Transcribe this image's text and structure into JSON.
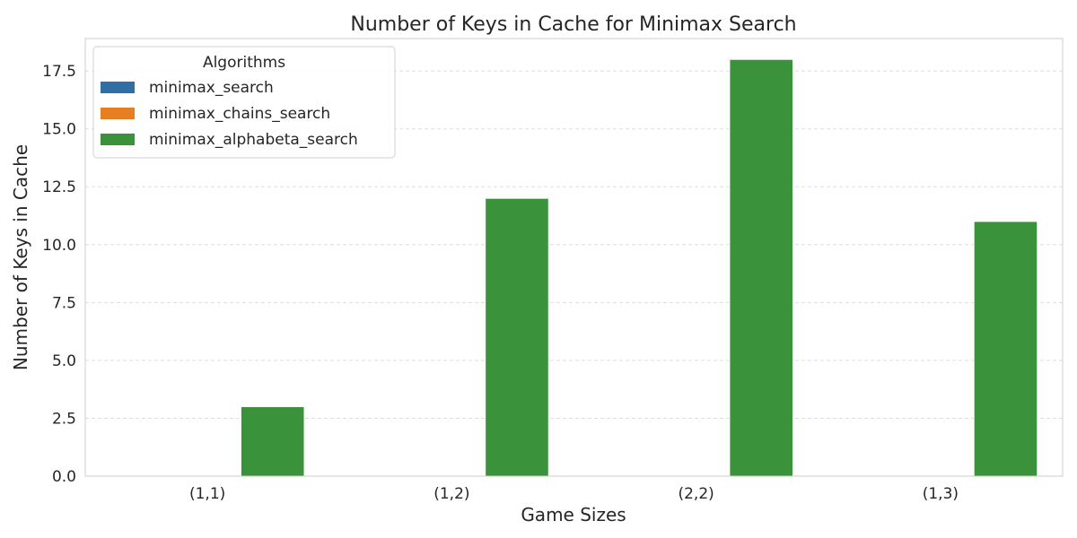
{
  "chart_data": {
    "type": "bar",
    "title": "Number of Keys in Cache for Minimax Search",
    "xlabel": "Game Sizes",
    "ylabel": "Number of Keys in Cache",
    "categories": [
      "(1,1)",
      "(1,2)",
      "(2,2)",
      "(1,3)"
    ],
    "series": [
      {
        "name": "minimax_search",
        "color": "#2f6fa3",
        "values": [
          0,
          0,
          0,
          0
        ]
      },
      {
        "name": "minimax_chains_search",
        "color": "#e67e22",
        "values": [
          0,
          0,
          0,
          0
        ]
      },
      {
        "name": "minimax_alphabeta_search",
        "color": "#3a923a",
        "values": [
          3,
          12,
          18,
          11
        ]
      }
    ],
    "ylim": [
      0,
      18.9
    ],
    "yticks": [
      "0.0",
      "2.5",
      "5.0",
      "7.5",
      "10.0",
      "12.5",
      "15.0",
      "17.5"
    ],
    "grid": true,
    "legend": {
      "title": "Algorithms",
      "position": "top-left"
    }
  }
}
